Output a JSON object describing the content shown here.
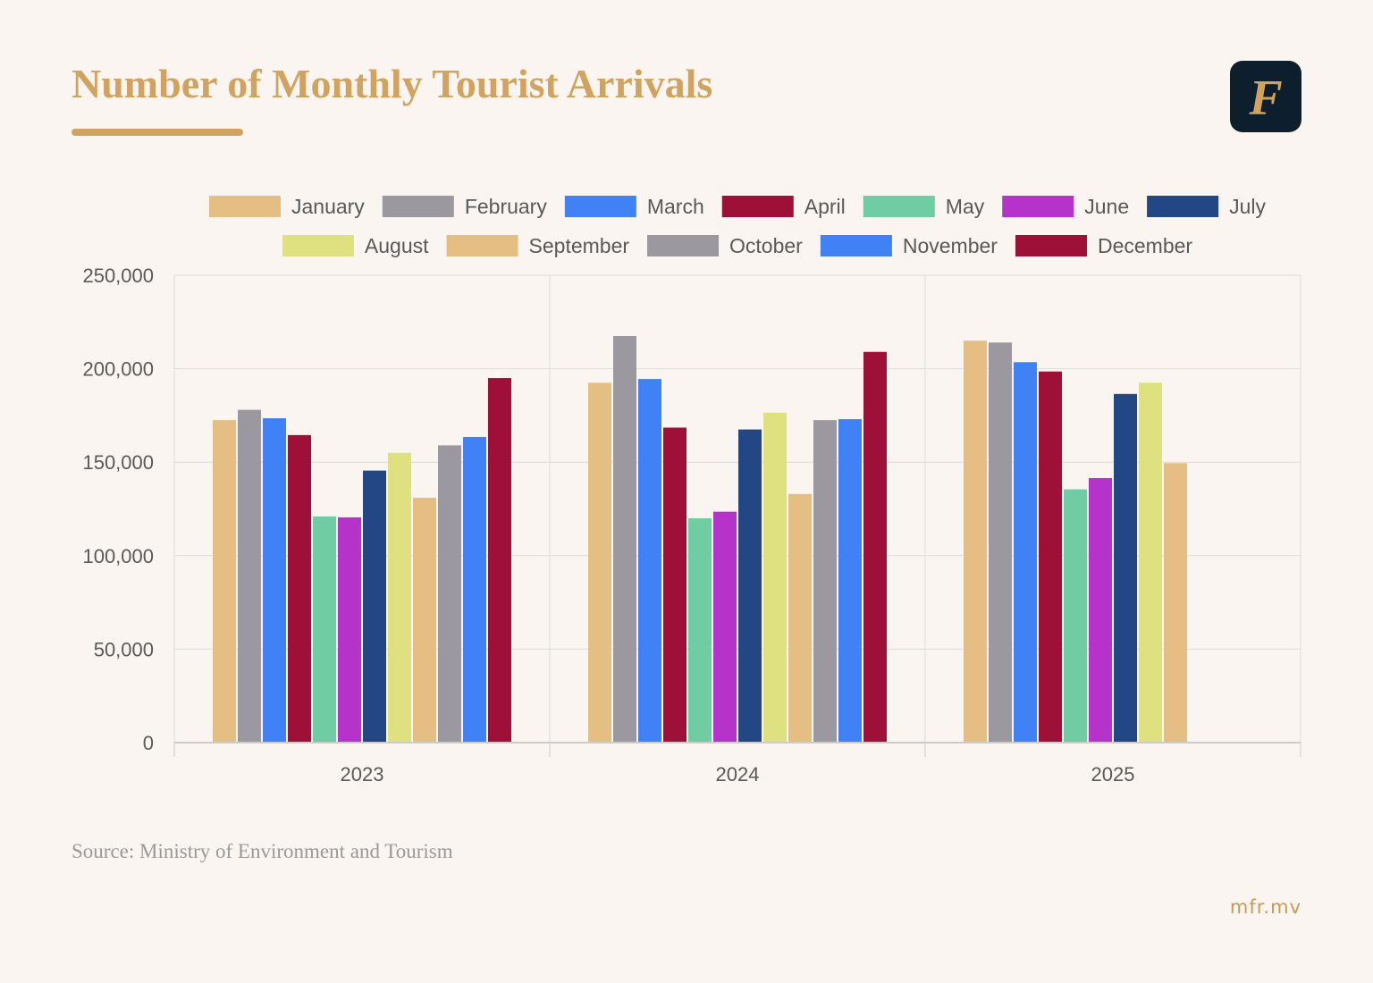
{
  "header": {
    "title": "Number of Monthly Tourist Arrivals",
    "logo_letter": "F"
  },
  "footer": {
    "source": "Source: Ministry of Environment and Tourism",
    "site": "mfr.mv"
  },
  "colors": {
    "accent": "#d1a35f",
    "background": "#faf5f0",
    "logo_bg": "#0d1f2d"
  },
  "chart_data": {
    "type": "bar",
    "title": "Number of Monthly Tourist Arrivals",
    "xlabel": "",
    "ylabel": "",
    "ylim": [
      0,
      250000
    ],
    "yticks": [
      0,
      50000,
      100000,
      150000,
      200000,
      250000
    ],
    "ytick_labels": [
      "0",
      "50,000",
      "100,000",
      "150,000",
      "200,000",
      "250,000"
    ],
    "grid": true,
    "legend": "top",
    "categories": [
      "2023",
      "2024",
      "2025"
    ],
    "series": [
      {
        "name": "January",
        "color": "#e5be83",
        "values": [
          172500,
          192500,
          215000
        ]
      },
      {
        "name": "February",
        "color": "#9b98a0",
        "values": [
          178000,
          217500,
          214000
        ]
      },
      {
        "name": "March",
        "color": "#4081f5",
        "values": [
          173500,
          194500,
          203500
        ]
      },
      {
        "name": "April",
        "color": "#9e1037",
        "values": [
          164500,
          168500,
          198500
        ]
      },
      {
        "name": "May",
        "color": "#6fcca3",
        "values": [
          121000,
          120000,
          135500
        ]
      },
      {
        "name": "June",
        "color": "#b633cb",
        "values": [
          120500,
          123500,
          141500
        ]
      },
      {
        "name": "July",
        "color": "#234785",
        "values": [
          145500,
          167500,
          186500
        ]
      },
      {
        "name": "August",
        "color": "#dfe181",
        "values": [
          155000,
          176500,
          192500
        ]
      },
      {
        "name": "September",
        "color": "#e5be83",
        "values": [
          131000,
          133000,
          149500
        ]
      },
      {
        "name": "October",
        "color": "#9b98a0",
        "values": [
          159000,
          172500,
          null
        ]
      },
      {
        "name": "November",
        "color": "#4081f5",
        "values": [
          163500,
          173000,
          null
        ]
      },
      {
        "name": "December",
        "color": "#9e1037",
        "values": [
          195000,
          209000,
          null
        ]
      }
    ]
  }
}
